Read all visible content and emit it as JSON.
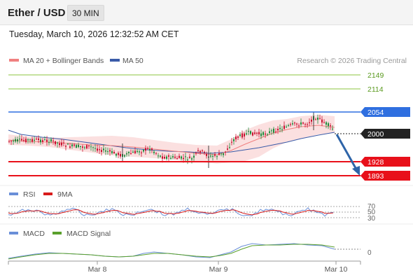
{
  "header": {
    "title": "Ether / USD",
    "interval": "30 MIN"
  },
  "datetime": "Tuesday, March 10, 2026 12:32:52 AM CET",
  "legend": {
    "ma_bollinger": "MA 20 + Bollinger Bands",
    "ma50": "MA 50",
    "copyright": "Research © 2026 Trading Central"
  },
  "levels": {
    "r2": "2149",
    "r1": "2114",
    "pivot": "2054",
    "last": "2000",
    "s1": "1928",
    "s2": "1893"
  },
  "rsi_panel": {
    "rsi_label": "RSI",
    "ma_label": "9MA",
    "scale": [
      "70",
      "50",
      "30"
    ]
  },
  "macd_panel": {
    "macd_label": "MACD",
    "signal_label": "MACD Signal",
    "zero": "0"
  },
  "xaxis": {
    "labels": [
      "Mar 8",
      "Mar 9",
      "Mar 10"
    ]
  },
  "colors": {
    "resistance": "#8cc63f",
    "pivot": "#2f6fe0",
    "support": "#e8101a",
    "last": "#222222",
    "ma20": "#f08080",
    "ma50": "#3a5ba8",
    "candle_up": "#1e8a3a",
    "candle_down": "#c8102e",
    "arrow": "#2e64a8",
    "rsi": "#6a8fd8",
    "rsi_ma": "#d81b1b",
    "macd": "#6a8fd8",
    "macd_signal": "#5aa02c"
  }
}
